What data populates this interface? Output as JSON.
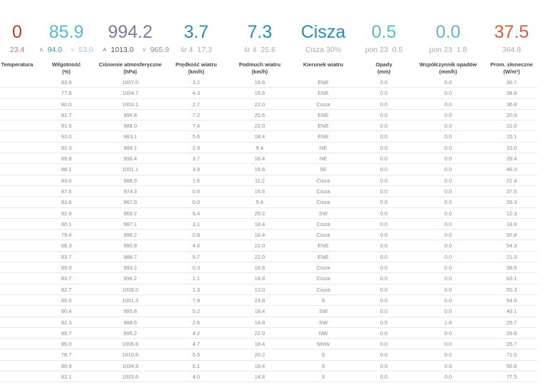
{
  "summary": {
    "temperature": {
      "value": "0",
      "min": "23.4",
      "color": "#c0392b"
    },
    "humidity": {
      "value": "85.9",
      "max": "94.0",
      "min": "53.0",
      "color": "#5bb8d4"
    },
    "pressure": {
      "value": "994.2",
      "max": "1013.0",
      "min": "965.9",
      "color": "#7b7b9c"
    },
    "wind_speed": {
      "value": "3.7",
      "avg_label": "śr 4",
      "max": "17.3",
      "color": "#2a8bb5"
    },
    "wind_gust": {
      "value": "7.3",
      "avg_label": "śr 4",
      "max": "25.6",
      "color": "#2a8bb5"
    },
    "wind_direction": {
      "value": "Cisza",
      "sub": "Cisza 30%",
      "color": "#2a8bb5"
    },
    "rain": {
      "value": "0.5",
      "date": "pon 23",
      "max": "0.5",
      "color": "#5bb8d4"
    },
    "rain_rate": {
      "value": "0.0",
      "date": "pon 23",
      "max": "1.8",
      "color": "#5bb8d4"
    },
    "solar": {
      "value": "37.5",
      "max": "364.8",
      "color": "#d0603a"
    }
  },
  "headers": [
    {
      "l1": "Temperatura",
      "l2": ""
    },
    {
      "l1": "Wilgotność",
      "l2": "(%)"
    },
    {
      "l1": "Ciśnienie atmosferyczne",
      "l2": "(hPa)"
    },
    {
      "l1": "Prędkość wiatru",
      "l2": "(km/h)"
    },
    {
      "l1": "Podmuch wiatru",
      "l2": "(km/h)"
    },
    {
      "l1": "Kierunek wiatru",
      "l2": ""
    },
    {
      "l1": "Opady",
      "l2": "(mm)"
    },
    {
      "l1": "Współczynnik opadów",
      "l2": "(mm/h)"
    },
    {
      "l1": "Prom. słoneczne",
      "l2": "(W/m²)"
    }
  ],
  "rows": [
    [
      "83.9",
      "1007.0",
      "3.2",
      "16.6",
      "ENE",
      "0.0",
      "0.0",
      "36.7"
    ],
    [
      "77.8",
      "1004.7",
      "4.3",
      "16.6",
      "ENE",
      "0.0",
      "0.0",
      "38.8"
    ],
    [
      "80.0",
      "1003.1",
      "2.7",
      "22.0",
      "Cisza",
      "0.0",
      "0.0",
      "36.8"
    ],
    [
      "81.7",
      "996.8",
      "7.2",
      "25.6",
      "ENE",
      "0.0",
      "0.0",
      "20.9"
    ],
    [
      "91.5",
      "988.0",
      "7.4",
      "22.0",
      "ENE",
      "0.0",
      "0.0",
      "21.0"
    ],
    [
      "93.0",
      "983.1",
      "5.6",
      "18.4",
      "ENE",
      "0.0",
      "0.0",
      "15.1"
    ],
    [
      "92.3",
      "988.1",
      "2.9",
      "9.4",
      "NE",
      "0.0",
      "0.0",
      "15.0"
    ],
    [
      "89.8",
      "996.4",
      "3.7",
      "18.4",
      "NE",
      "0.0",
      "0.0",
      "29.4"
    ],
    [
      "88.1",
      "1001.1",
      "3.8",
      "16.6",
      "SE",
      "0.0",
      "0.0",
      "46.3"
    ],
    [
      "93.0",
      "988.9",
      "1.6",
      "11.2",
      "Cisza",
      "0.0",
      "0.0",
      "21.4"
    ],
    [
      "87.6",
      "974.3",
      "0.6",
      "16.6",
      "Cisza",
      "0.0",
      "0.0",
      "37.5"
    ],
    [
      "91.6",
      "967.5",
      "0.0",
      "5.4",
      "Cisza",
      "0.0",
      "0.0",
      "26.3"
    ],
    [
      "92.9",
      "969.2",
      "5.4",
      "20.2",
      "SW",
      "0.0",
      "0.0",
      "12.3"
    ],
    [
      "90.1",
      "987.1",
      "3.1",
      "18.4",
      "Cisza",
      "0.0",
      "0.0",
      "18.6"
    ],
    [
      "79.4",
      "998.2",
      "0.8",
      "18.4",
      "Cisza",
      "0.0",
      "0.0",
      "50.8"
    ],
    [
      "68.3",
      "990.9",
      "4.0",
      "22.0",
      "ENE",
      "0.0",
      "0.0",
      "54.3"
    ],
    [
      "83.7",
      "988.7",
      "5.7",
      "22.0",
      "ENE",
      "0.0",
      "0.0",
      "21.3"
    ],
    [
      "89.0",
      "993.2",
      "0.3",
      "16.6",
      "Cisza",
      "0.0",
      "0.0",
      "38.5"
    ],
    [
      "83.7",
      "996.2",
      "1.1",
      "14.8",
      "Cisza",
      "0.0",
      "0.0",
      "63.1"
    ],
    [
      "82.7",
      "1008.0",
      "1.3",
      "13.0",
      "Cisza",
      "0.0",
      "0.0",
      "55.3"
    ],
    [
      "85.0",
      "1001.3",
      "7.9",
      "23.8",
      "S",
      "0.0",
      "0.0",
      "54.6"
    ],
    [
      "90.4",
      "995.8",
      "5.2",
      "18.4",
      "SW",
      "0.0",
      "0.0",
      "49.1"
    ],
    [
      "92.3",
      "988.6",
      "2.6",
      "14.8",
      "SW",
      "0.5",
      "1.8",
      "25.7"
    ],
    [
      "89.7",
      "995.2",
      "4.2",
      "22.0",
      "NW",
      "0.0",
      "0.0",
      "29.8"
    ],
    [
      "86.0",
      "1006.6",
      "4.7",
      "18.4",
      "NNW",
      "0.0",
      "0.0",
      "25.7"
    ],
    [
      "78.7",
      "1010.6",
      "5.5",
      "20.2",
      "S",
      "0.0",
      "0.0",
      "71.0"
    ],
    [
      "80.9",
      "1004.9",
      "6.1",
      "18.4",
      "S",
      "0.0",
      "0.0",
      "56.8"
    ],
    [
      "82.1",
      "1003.6",
      "4.0",
      "14.8",
      "S",
      "0.0",
      "0.0",
      "77.5"
    ]
  ]
}
